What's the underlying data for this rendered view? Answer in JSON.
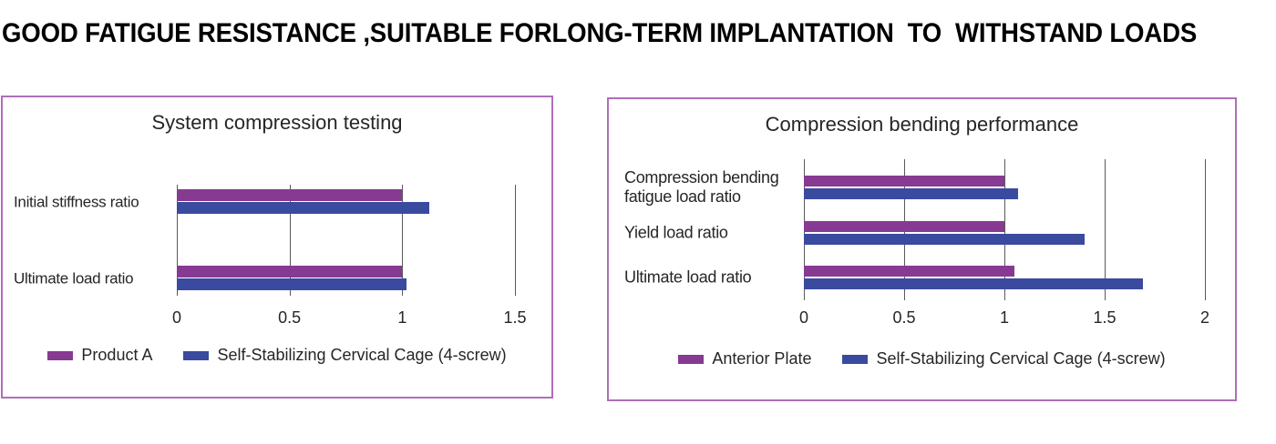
{
  "page": {
    "title": "GOOD FATIGUE RESISTANCE ,SUITABLE FORLONG-TERM IMPLANTATION  TO  WITHSTAND LOADS"
  },
  "colors": {
    "series_purple": "#873a92",
    "series_blue": "#3a4a9e",
    "panel_border": "#ae6fb8",
    "gridline": "#5a5a5a",
    "text": "#262626"
  },
  "chart_data": [
    {
      "type": "bar",
      "orientation": "horizontal",
      "title": "System compression testing",
      "categories": [
        "Initial stiffness ratio",
        "Ultimate load ratio"
      ],
      "series": [
        {
          "name": "Product A",
          "color": "#873a92",
          "values": [
            1.0,
            1.0
          ]
        },
        {
          "name": "Self-Stabilizing Cervical Cage (4-screw)",
          "color": "#3a4a9e",
          "values": [
            1.12,
            1.02
          ]
        }
      ],
      "xticks": [
        0,
        0.5,
        1,
        1.5
      ],
      "xlim": [
        0,
        1.5
      ],
      "grid": "vertical",
      "legend_position": "bottom"
    },
    {
      "type": "bar",
      "orientation": "horizontal",
      "title": "Compression bending performance",
      "categories": [
        "Compression bending fatigue load ratio",
        "Yield load ratio",
        "Ultimate load ratio"
      ],
      "series": [
        {
          "name": "Anterior Plate",
          "color": "#873a92",
          "values": [
            1.0,
            1.0,
            1.05
          ]
        },
        {
          "name": "Self-Stabilizing Cervical Cage (4-screw)",
          "color": "#3a4a9e",
          "values": [
            1.07,
            1.4,
            1.69
          ]
        }
      ],
      "xticks": [
        0,
        0.5,
        1,
        1.5,
        2
      ],
      "xlim": [
        0,
        2
      ],
      "grid": "vertical",
      "legend_position": "bottom"
    }
  ]
}
